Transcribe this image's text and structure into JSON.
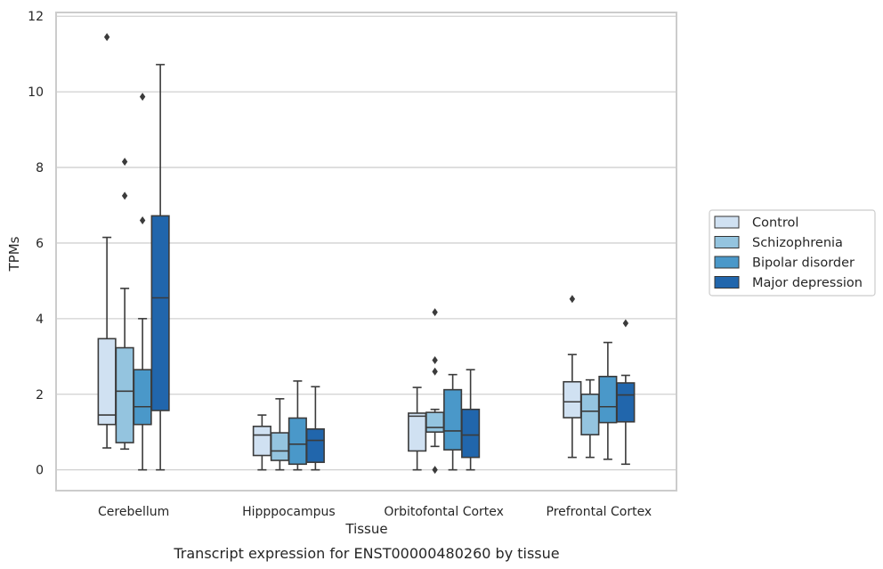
{
  "chart_data": {
    "type": "boxplot",
    "title": "Transcript expression for ENST00000480260 by tissue",
    "xlabel": "Tissue",
    "ylabel": "TPMs",
    "ylim": [
      -0.55,
      12.1
    ],
    "yticks": [
      0,
      2,
      4,
      6,
      8,
      10,
      12
    ],
    "grid": "horizontal",
    "legend_position": "right",
    "categories": [
      "Cerebellum",
      "Hipppocampus",
      "Orbitofontal Cortex",
      "Prefrontal Cortex"
    ],
    "series": [
      {
        "name": "Control",
        "color": "#d0e1f2",
        "boxes": [
          {
            "whislo": 0.58,
            "q1": 1.2,
            "med": 1.45,
            "q3": 3.47,
            "whishi": 6.15,
            "fliers": [
              11.45
            ]
          },
          {
            "whislo": 0.0,
            "q1": 0.38,
            "med": 0.92,
            "q3": 1.15,
            "whishi": 1.45,
            "fliers": []
          },
          {
            "whislo": 0.0,
            "q1": 0.5,
            "med": 1.42,
            "q3": 1.5,
            "whishi": 2.18,
            "fliers": []
          },
          {
            "whislo": 0.33,
            "q1": 1.38,
            "med": 1.8,
            "q3": 2.33,
            "whishi": 3.05,
            "fliers": [
              4.52
            ]
          }
        ]
      },
      {
        "name": "Schizophrenia",
        "color": "#94c4df",
        "boxes": [
          {
            "whislo": 0.55,
            "q1": 0.72,
            "med": 2.08,
            "q3": 3.23,
            "whishi": 4.8,
            "fliers": [
              8.15,
              7.25
            ]
          },
          {
            "whislo": 0.0,
            "q1": 0.25,
            "med": 0.5,
            "q3": 0.98,
            "whishi": 1.88,
            "fliers": []
          },
          {
            "whislo": 0.62,
            "q1": 1.0,
            "med": 1.12,
            "q3": 1.52,
            "whishi": 1.6,
            "fliers": [
              4.17,
              2.9,
              2.6,
              0.0
            ]
          },
          {
            "whislo": 0.33,
            "q1": 0.93,
            "med": 1.55,
            "q3": 2.0,
            "whishi": 2.38,
            "fliers": []
          }
        ]
      },
      {
        "name": "Bipolar disorder",
        "color": "#4a98c9",
        "boxes": [
          {
            "whislo": 0.0,
            "q1": 1.2,
            "med": 1.67,
            "q3": 2.65,
            "whishi": 4.0,
            "fliers": [
              9.87,
              6.6
            ]
          },
          {
            "whislo": 0.0,
            "q1": 0.15,
            "med": 0.68,
            "q3": 1.37,
            "whishi": 2.35,
            "fliers": []
          },
          {
            "whislo": 0.0,
            "q1": 0.53,
            "med": 1.03,
            "q3": 2.12,
            "whishi": 2.52,
            "fliers": []
          },
          {
            "whislo": 0.28,
            "q1": 1.25,
            "med": 1.67,
            "q3": 2.47,
            "whishi": 3.37,
            "fliers": []
          }
        ]
      },
      {
        "name": "Major depression",
        "color": "#2166ac",
        "boxes": [
          {
            "whislo": 0.0,
            "q1": 1.57,
            "med": 4.55,
            "q3": 6.72,
            "whishi": 10.72,
            "fliers": []
          },
          {
            "whislo": 0.0,
            "q1": 0.2,
            "med": 0.78,
            "q3": 1.08,
            "whishi": 2.2,
            "fliers": []
          },
          {
            "whislo": 0.0,
            "q1": 0.33,
            "med": 0.92,
            "q3": 1.6,
            "whishi": 2.65,
            "fliers": []
          },
          {
            "whislo": 0.15,
            "q1": 1.27,
            "med": 1.98,
            "q3": 2.3,
            "whishi": 2.5,
            "fliers": [
              3.88
            ]
          }
        ]
      }
    ]
  }
}
